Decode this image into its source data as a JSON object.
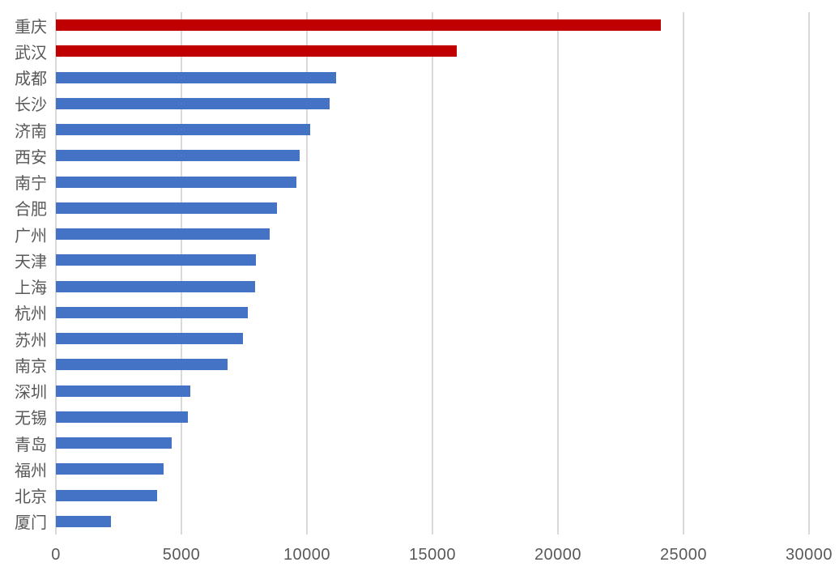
{
  "chart_data": {
    "type": "bar",
    "orientation": "horizontal",
    "title": "",
    "subtitle": "",
    "xlabel": "",
    "ylabel": "",
    "categories": [
      "重庆",
      "武汉",
      "成都",
      "长沙",
      "济南",
      "西安",
      "南宁",
      "合肥",
      "广州",
      "天津",
      "上海",
      "杭州",
      "苏州",
      "南京",
      "深圳",
      "无锡",
      "青岛",
      "福州",
      "北京",
      "厦门"
    ],
    "values": [
      24100,
      15970,
      11170,
      10910,
      10120,
      9700,
      9580,
      8820,
      8500,
      7970,
      7920,
      7660,
      7440,
      6830,
      5360,
      5270,
      4610,
      4290,
      4030,
      2200
    ],
    "bar_colors": [
      "#C00000",
      "#C00000",
      "#4472C4",
      "#4472C4",
      "#4472C4",
      "#4472C4",
      "#4472C4",
      "#4472C4",
      "#4472C4",
      "#4472C4",
      "#4472C4",
      "#4472C4",
      "#4472C4",
      "#4472C4",
      "#4472C4",
      "#4472C4",
      "#4472C4",
      "#4472C4",
      "#4472C4",
      "#4472C4"
    ],
    "x_ticks": [
      0,
      5000,
      10000,
      15000,
      20000,
      25000,
      30000
    ],
    "x_tick_labels": [
      "0",
      "5000",
      "10000",
      "15000",
      "20000",
      "25000",
      "30000"
    ],
    "xlim": [
      0,
      30000
    ],
    "grid": true,
    "legend": false,
    "legend_position": "none"
  },
  "colors": {
    "highlight_bar": "#C00000",
    "default_bar": "#4472C4",
    "gridline": "#D9D9D9",
    "axis_text": "#595959",
    "background": "#FFFFFF"
  }
}
